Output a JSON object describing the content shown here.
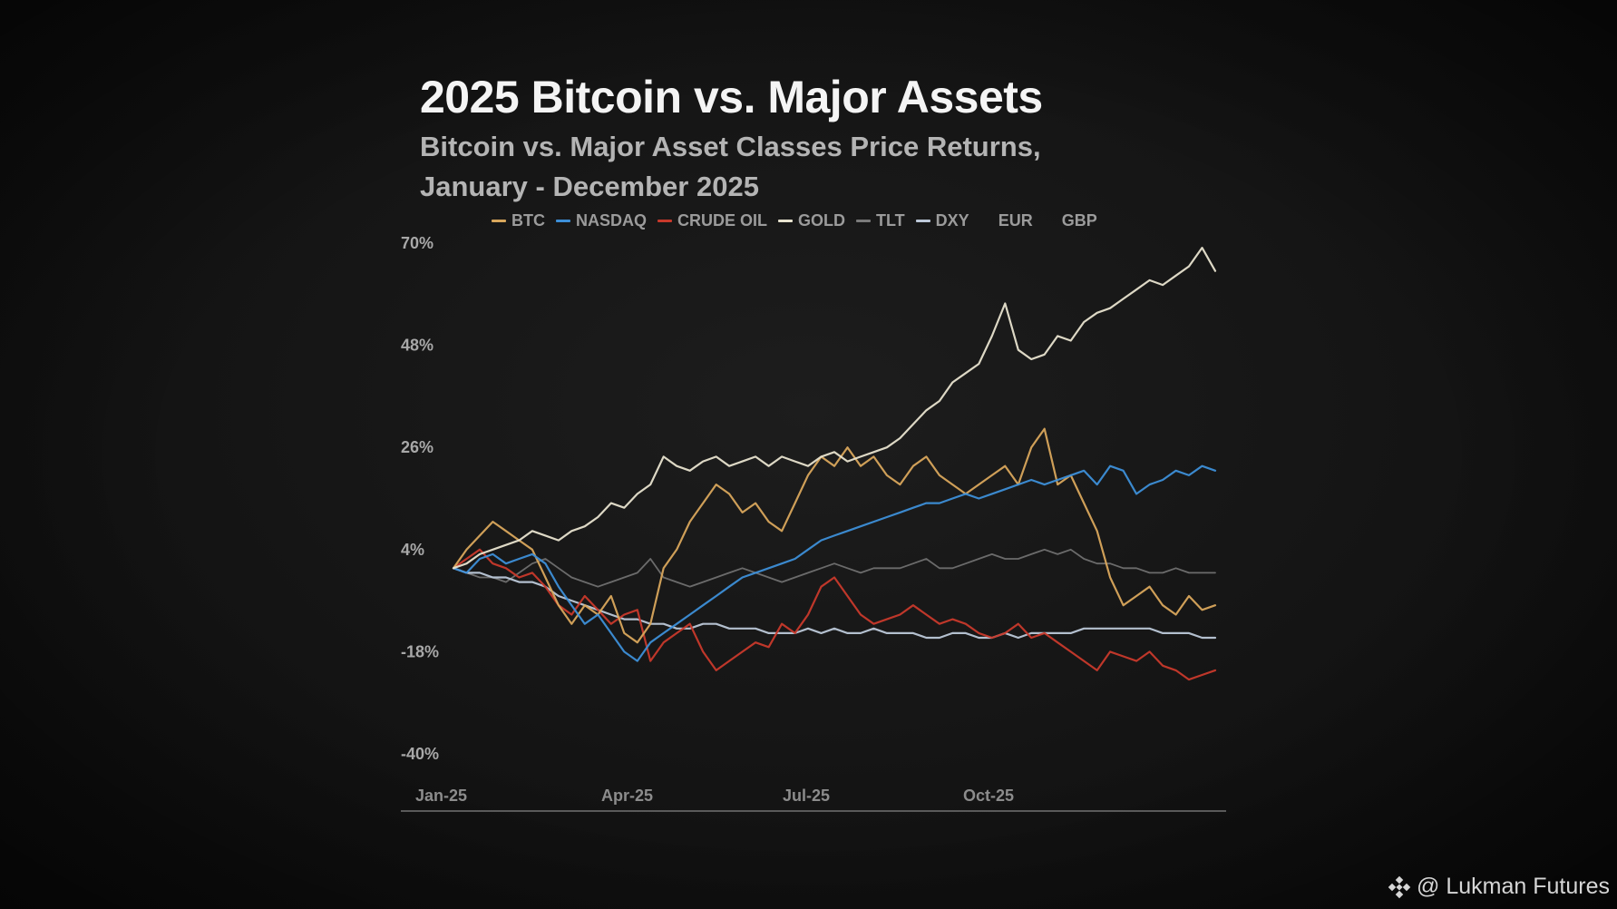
{
  "header": {
    "title": "2025 Bitcoin vs. Major Assets",
    "subtitle_line1": "Bitcoin vs. Major Asset Classes Price Returns,",
    "subtitle_line2": "January - December 2025"
  },
  "legend": [
    {
      "label": "BTC",
      "color": "#d9a75c"
    },
    {
      "label": "NASDAQ",
      "color": "#3d8fd8"
    },
    {
      "label": "CRUDE OIL",
      "color": "#c8392b"
    },
    {
      "label": "GOLD",
      "color": "#e8e3cf"
    },
    {
      "label": "TLT",
      "color": "#7a7a7a"
    },
    {
      "label": "DXY",
      "color": "#bcc8d8"
    },
    {
      "label": "EUR",
      "color": ""
    },
    {
      "label": "GBP",
      "color": ""
    }
  ],
  "watermark": {
    "text": "@ Lukman Futures",
    "icon": "binance-logo-icon"
  },
  "chart_data": {
    "type": "line",
    "title": "2025 Bitcoin vs. Major Assets",
    "subtitle": "Bitcoin vs. Major Asset Classes Price Returns, January - December 2025",
    "xlabel": "",
    "ylabel": "",
    "x_unit": "months since Jan-25",
    "xlim": [
      0,
      11.6
    ],
    "ylim": [
      -40,
      70
    ],
    "y_ticks": [
      70,
      48,
      26,
      4,
      -18,
      -40
    ],
    "y_tick_labels": [
      "70%",
      "48%",
      "26%",
      "4%",
      "-18%",
      "-40%"
    ],
    "x_ticks": [
      0,
      3,
      6,
      9
    ],
    "x_tick_labels": [
      "Jan-25",
      "Apr-25",
      "Jul-25",
      "Oct-25"
    ],
    "grid": false,
    "legend_position": "top",
    "series": [
      {
        "name": "BTC",
        "color": "#d9a75c",
        "x": [
          0,
          0.2,
          0.4,
          0.6,
          0.8,
          1.0,
          1.2,
          1.4,
          1.6,
          1.8,
          2.0,
          2.2,
          2.4,
          2.6,
          2.8,
          3.0,
          3.2,
          3.4,
          3.6,
          3.8,
          4.0,
          4.2,
          4.4,
          4.6,
          4.8,
          5.0,
          5.2,
          5.4,
          5.6,
          5.8,
          6.0,
          6.2,
          6.4,
          6.6,
          6.8,
          7.0,
          7.2,
          7.4,
          7.6,
          7.8,
          8.0,
          8.2,
          8.4,
          8.6,
          8.8,
          9.0,
          9.2,
          9.4,
          9.6,
          9.8,
          10.0,
          10.2,
          10.4,
          10.6,
          10.8,
          11.0,
          11.2,
          11.4,
          11.6
        ],
        "y": [
          0,
          4,
          7,
          10,
          8,
          6,
          4,
          -2,
          -8,
          -12,
          -8,
          -10,
          -6,
          -14,
          -16,
          -12,
          0,
          4,
          10,
          14,
          18,
          16,
          12,
          14,
          10,
          8,
          14,
          20,
          24,
          22,
          26,
          22,
          24,
          20,
          18,
          22,
          24,
          20,
          18,
          16,
          18,
          20,
          22,
          18,
          26,
          30,
          18,
          20,
          14,
          8,
          -2,
          -8,
          -6,
          -4,
          -8,
          -10,
          -6,
          -9,
          -8
        ]
      },
      {
        "name": "NASDAQ",
        "color": "#3d8fd8",
        "x": [
          0,
          0.2,
          0.4,
          0.6,
          0.8,
          1.0,
          1.2,
          1.4,
          1.6,
          1.8,
          2.0,
          2.2,
          2.4,
          2.6,
          2.8,
          3.0,
          3.2,
          3.4,
          3.6,
          3.8,
          4.0,
          4.2,
          4.4,
          4.6,
          4.8,
          5.0,
          5.2,
          5.4,
          5.6,
          5.8,
          6.0,
          6.2,
          6.4,
          6.6,
          6.8,
          7.0,
          7.2,
          7.4,
          7.6,
          7.8,
          8.0,
          8.2,
          8.4,
          8.6,
          8.8,
          9.0,
          9.2,
          9.4,
          9.6,
          9.8,
          10.0,
          10.2,
          10.4,
          10.6,
          10.8,
          11.0,
          11.2,
          11.4,
          11.6
        ],
        "y": [
          0,
          -1,
          2,
          3,
          1,
          2,
          3,
          1,
          -4,
          -8,
          -12,
          -10,
          -14,
          -18,
          -20,
          -16,
          -14,
          -12,
          -10,
          -8,
          -6,
          -4,
          -2,
          -1,
          0,
          1,
          2,
          4,
          6,
          7,
          8,
          9,
          10,
          11,
          12,
          13,
          14,
          14,
          15,
          16,
          15,
          16,
          17,
          18,
          19,
          18,
          19,
          20,
          21,
          18,
          22,
          21,
          16,
          18,
          19,
          21,
          20,
          22,
          21
        ]
      },
      {
        "name": "CRUDE OIL",
        "color": "#c8392b",
        "x": [
          0,
          0.2,
          0.4,
          0.6,
          0.8,
          1.0,
          1.2,
          1.4,
          1.6,
          1.8,
          2.0,
          2.2,
          2.4,
          2.6,
          2.8,
          3.0,
          3.2,
          3.4,
          3.6,
          3.8,
          4.0,
          4.2,
          4.4,
          4.6,
          4.8,
          5.0,
          5.2,
          5.4,
          5.6,
          5.8,
          6.0,
          6.2,
          6.4,
          6.6,
          6.8,
          7.0,
          7.2,
          7.4,
          7.6,
          7.8,
          8.0,
          8.2,
          8.4,
          8.6,
          8.8,
          9.0,
          9.2,
          9.4,
          9.6,
          9.8,
          10.0,
          10.2,
          10.4,
          10.6,
          10.8,
          11.0,
          11.2,
          11.4,
          11.6
        ],
        "y": [
          0,
          2,
          4,
          1,
          0,
          -2,
          -1,
          -4,
          -8,
          -10,
          -6,
          -9,
          -12,
          -10,
          -9,
          -20,
          -16,
          -14,
          -12,
          -18,
          -22,
          -20,
          -18,
          -16,
          -17,
          -12,
          -14,
          -10,
          -4,
          -2,
          -6,
          -10,
          -12,
          -11,
          -10,
          -8,
          -10,
          -12,
          -11,
          -12,
          -14,
          -15,
          -14,
          -12,
          -15,
          -14,
          -16,
          -18,
          -20,
          -22,
          -18,
          -19,
          -20,
          -18,
          -21,
          -22,
          -24,
          -23,
          -22
        ]
      },
      {
        "name": "GOLD",
        "color": "#e8e3cf",
        "x": [
          0,
          0.2,
          0.4,
          0.6,
          0.8,
          1.0,
          1.2,
          1.4,
          1.6,
          1.8,
          2.0,
          2.2,
          2.4,
          2.6,
          2.8,
          3.0,
          3.2,
          3.4,
          3.6,
          3.8,
          4.0,
          4.2,
          4.4,
          4.6,
          4.8,
          5.0,
          5.2,
          5.4,
          5.6,
          5.8,
          6.0,
          6.2,
          6.4,
          6.6,
          6.8,
          7.0,
          7.2,
          7.4,
          7.6,
          7.8,
          8.0,
          8.2,
          8.4,
          8.6,
          8.8,
          9.0,
          9.2,
          9.4,
          9.6,
          9.8,
          10.0,
          10.2,
          10.4,
          10.6,
          10.8,
          11.0,
          11.2,
          11.4,
          11.6
        ],
        "y": [
          0,
          1,
          3,
          4,
          5,
          6,
          8,
          7,
          6,
          8,
          9,
          11,
          14,
          13,
          16,
          18,
          24,
          22,
          21,
          23,
          24,
          22,
          23,
          24,
          22,
          24,
          23,
          22,
          24,
          25,
          23,
          24,
          25,
          26,
          28,
          31,
          34,
          36,
          40,
          42,
          44,
          50,
          57,
          47,
          45,
          46,
          50,
          49,
          53,
          55,
          56,
          58,
          60,
          62,
          61,
          63,
          65,
          69,
          64
        ]
      },
      {
        "name": "TLT",
        "color": "#7a7a7a",
        "x": [
          0,
          0.2,
          0.4,
          0.6,
          0.8,
          1.0,
          1.2,
          1.4,
          1.6,
          1.8,
          2.0,
          2.2,
          2.4,
          2.6,
          2.8,
          3.0,
          3.2,
          3.4,
          3.6,
          3.8,
          4.0,
          4.2,
          4.4,
          4.6,
          4.8,
          5.0,
          5.2,
          5.4,
          5.6,
          5.8,
          6.0,
          6.2,
          6.4,
          6.6,
          6.8,
          7.0,
          7.2,
          7.4,
          7.6,
          7.8,
          8.0,
          8.2,
          8.4,
          8.6,
          8.8,
          9.0,
          9.2,
          9.4,
          9.6,
          9.8,
          10.0,
          10.2,
          10.4,
          10.6,
          10.8,
          11.0,
          11.2,
          11.4,
          11.6
        ],
        "y": [
          0,
          -1,
          -2,
          -2,
          -3,
          -1,
          1,
          2,
          0,
          -2,
          -3,
          -4,
          -3,
          -2,
          -1,
          2,
          -2,
          -3,
          -4,
          -3,
          -2,
          -1,
          0,
          -1,
          -2,
          -3,
          -2,
          -1,
          0,
          1,
          0,
          -1,
          0,
          0,
          0,
          1,
          2,
          0,
          0,
          1,
          2,
          3,
          2,
          2,
          3,
          4,
          3,
          4,
          2,
          1,
          1,
          0,
          0,
          -1,
          -1,
          0,
          -1,
          -1,
          -1
        ]
      },
      {
        "name": "DXY",
        "color": "#bcc8d8",
        "x": [
          0,
          0.2,
          0.4,
          0.6,
          0.8,
          1.0,
          1.2,
          1.4,
          1.6,
          1.8,
          2.0,
          2.2,
          2.4,
          2.6,
          2.8,
          3.0,
          3.2,
          3.4,
          3.6,
          3.8,
          4.0,
          4.2,
          4.4,
          4.6,
          4.8,
          5.0,
          5.2,
          5.4,
          5.6,
          5.8,
          6.0,
          6.2,
          6.4,
          6.6,
          6.8,
          7.0,
          7.2,
          7.4,
          7.6,
          7.8,
          8.0,
          8.2,
          8.4,
          8.6,
          8.8,
          9.0,
          9.2,
          9.4,
          9.6,
          9.8,
          10.0,
          10.2,
          10.4,
          10.6,
          10.8,
          11.0,
          11.2,
          11.4,
          11.6
        ],
        "y": [
          0,
          -1,
          -1,
          -2,
          -2,
          -3,
          -3,
          -4,
          -6,
          -7,
          -8,
          -9,
          -10,
          -11,
          -11,
          -12,
          -12,
          -13,
          -13,
          -12,
          -12,
          -13,
          -13,
          -13,
          -14,
          -14,
          -14,
          -13,
          -14,
          -13,
          -14,
          -14,
          -13,
          -14,
          -14,
          -14,
          -15,
          -15,
          -14,
          -14,
          -15,
          -15,
          -14,
          -15,
          -14,
          -14,
          -14,
          -14,
          -13,
          -13,
          -13,
          -13,
          -13,
          -13,
          -14,
          -14,
          -14,
          -15,
          -15
        ]
      }
    ]
  }
}
